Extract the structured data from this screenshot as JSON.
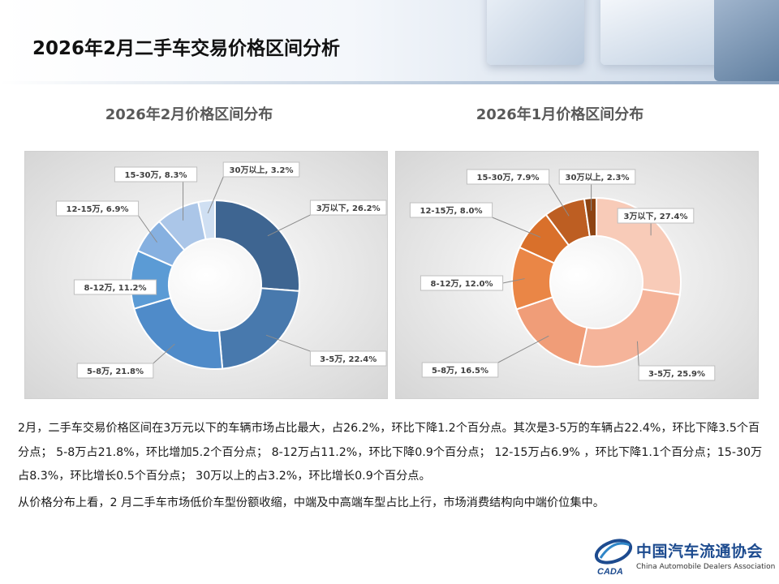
{
  "page": {
    "title": "2026年2月二手车交易价格区间分析"
  },
  "chart_data": [
    {
      "type": "pie",
      "donut": true,
      "title": "2026年2月价格区间分布",
      "categories": [
        "3万以下",
        "3-5万",
        "5-8万",
        "8-12万",
        "12-15万",
        "15-30万",
        "30万以上"
      ],
      "values": [
        26.2,
        22.4,
        21.8,
        11.2,
        6.9,
        8.3,
        3.2
      ],
      "labels": [
        "3万以下, 26.2%",
        "3-5万, 22.4%",
        "5-8万, 21.8%",
        "8-12万, 11.2%",
        "12-15万, 6.9%",
        "15-30万, 8.3%",
        "30万以上, 3.2%"
      ],
      "colors": [
        "#3e6591",
        "#4879ad",
        "#4f8bc9",
        "#5b9bd5",
        "#86b0e0",
        "#abc6e8",
        "#cfdff2"
      ]
    },
    {
      "type": "pie",
      "donut": true,
      "title": "2026年1月价格区间分布",
      "categories": [
        "3万以下",
        "3-5万",
        "5-8万",
        "8-12万",
        "12-15万",
        "15-30万",
        "30万以上"
      ],
      "values": [
        27.4,
        25.9,
        16.5,
        12.0,
        8.0,
        7.9,
        2.3
      ],
      "labels": [
        "3万以下, 27.4%",
        "3-5万, 25.9%",
        "5-8万, 16.5%",
        "8-12万, 12.0%",
        "12-15万, 8.0%",
        "15-30万, 7.9%",
        "30万以上, 2.3%"
      ],
      "colors": [
        "#f8cbb8",
        "#f5b49a",
        "#f09d78",
        "#ea8646",
        "#d9702b",
        "#bd5e22",
        "#8e4413"
      ]
    }
  ],
  "text": {
    "paragraph1": "2月，二手车交易价格区间在3万元以下的车辆市场占比最大，占26.2%，环比下降1.2个百分点。其次是3-5万的车辆占22.4%，环比下降3.5个百分点；  5-8万占21.8%，环比增加5.2个百分点；  8-12万占11.2%，环比下降0.9个百分点；  12-15万占6.9% ，环比下降1.1个百分点；15-30万占8.3%，环比增长0.5个百分点；  30万以上的占3.2%，环比增长0.9个百分点。",
    "paragraph2": "从价格分布上看，2 月二手车市场低价车型份额收缩，中端及中高端车型占比上行，市场消费结构向中端价位集中。"
  },
  "logo": {
    "name": "中国汽车流通协会",
    "subtitle": "China Automobile Dealers Association",
    "abbr": "CADA",
    "color": "#1d4b8f"
  }
}
